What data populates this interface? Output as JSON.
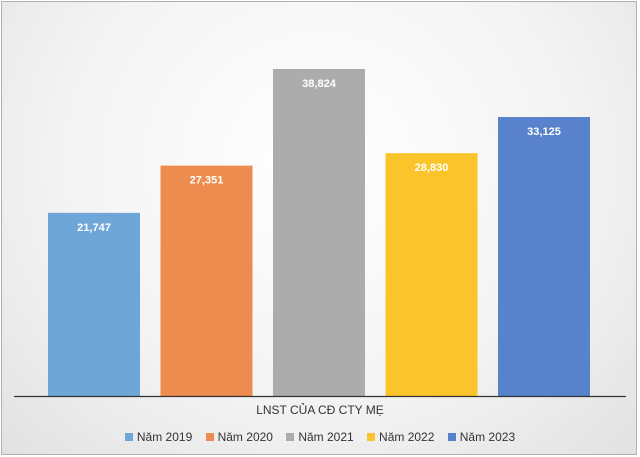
{
  "chart_data": {
    "type": "bar",
    "categories": [
      "LNST CỦA CĐ CTY MẸ"
    ],
    "series": [
      {
        "name": "Năm 2019",
        "values": [
          21747
        ],
        "label": "21,747",
        "color": "#6fa6d8"
      },
      {
        "name": "Năm 2020",
        "values": [
          27351
        ],
        "label": "27,351",
        "color": "#ed8c4e"
      },
      {
        "name": "Năm 2021",
        "values": [
          38824
        ],
        "label": "38,824",
        "color": "#acacac"
      },
      {
        "name": "Năm 2022",
        "values": [
          28830
        ],
        "label": "28,830",
        "color": "#fbc42a"
      },
      {
        "name": "Năm 2023",
        "values": [
          33125
        ],
        "label": "33,125",
        "color": "#5883cc"
      }
    ],
    "xlabel": "",
    "ylabel": "",
    "ylim": [
      0,
      45000
    ],
    "grid": false,
    "legend": "bottom"
  }
}
